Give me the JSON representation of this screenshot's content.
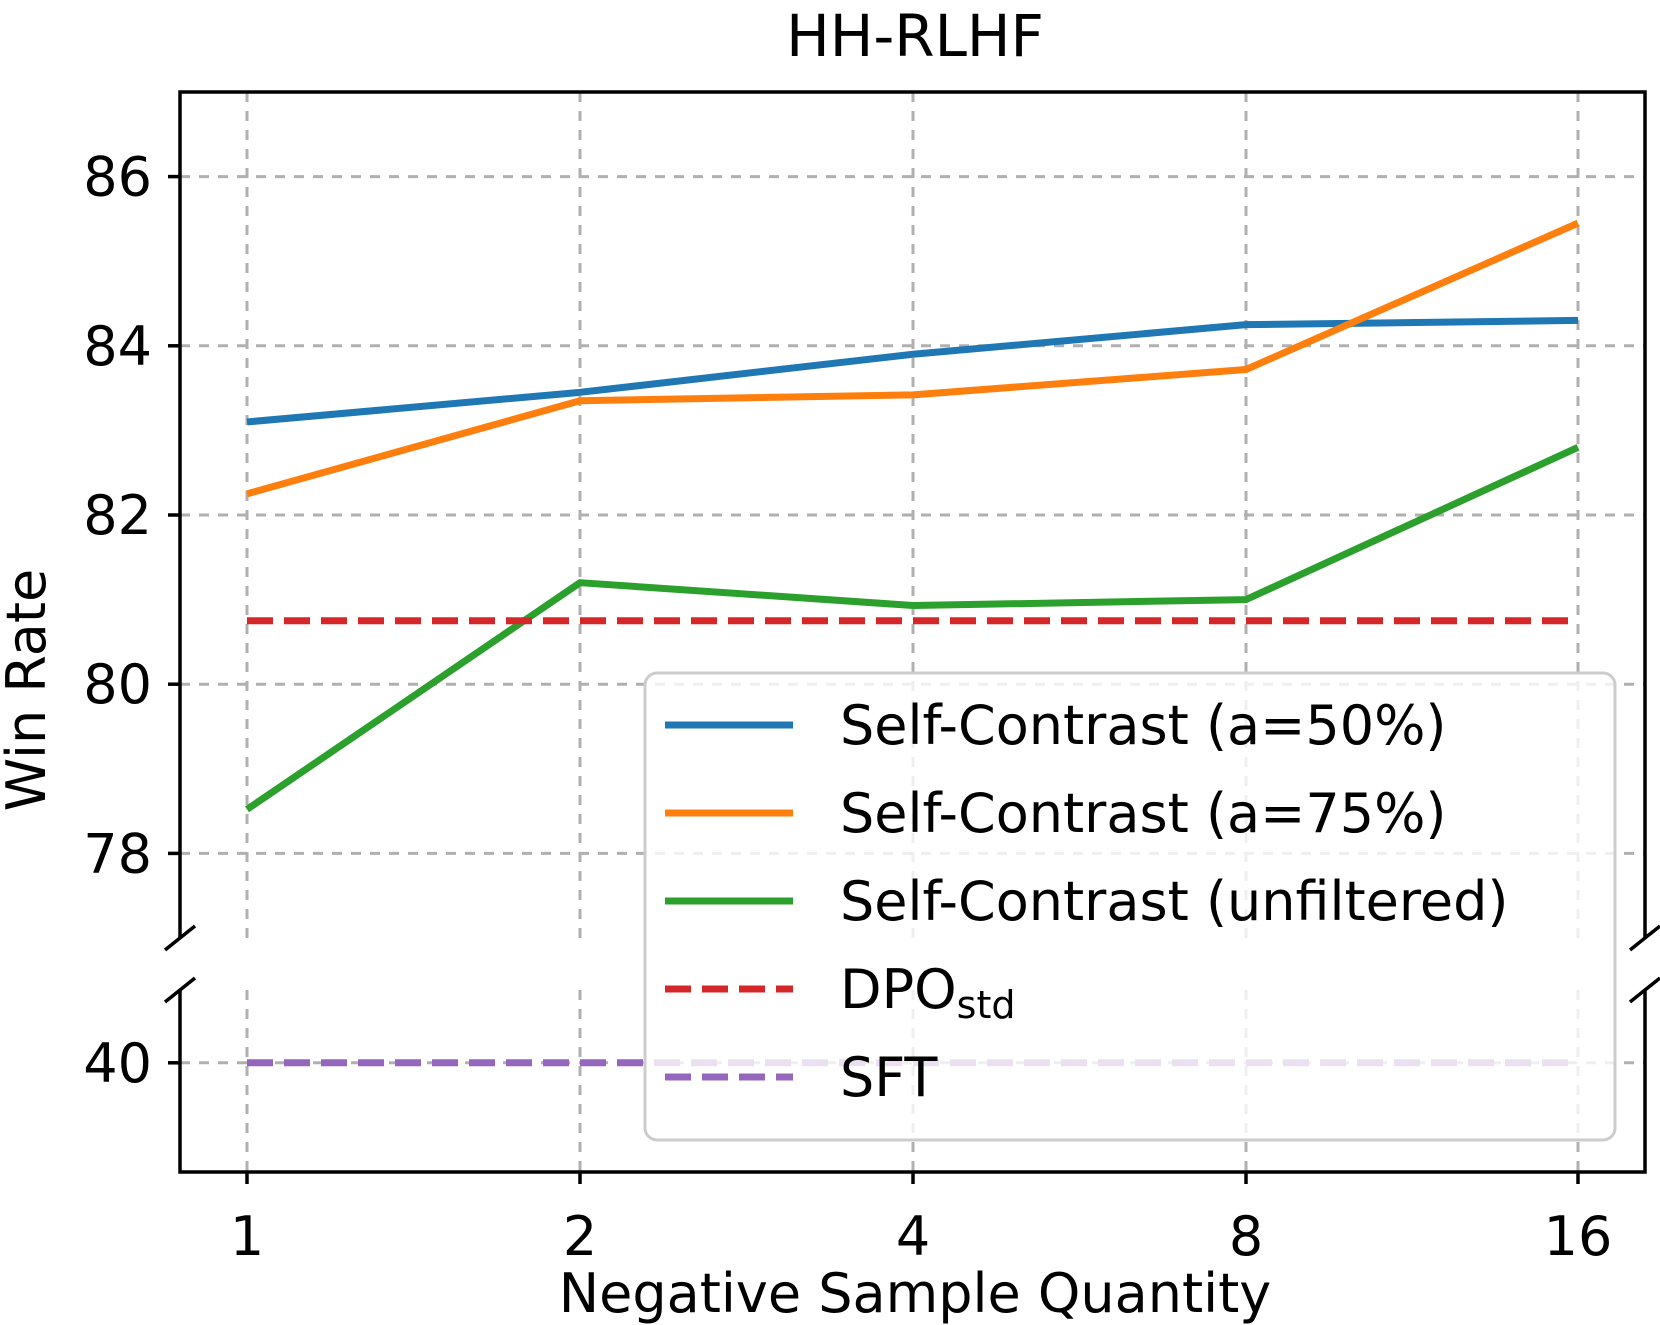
{
  "chart_data": {
    "type": "line",
    "title": "HH-RLHF",
    "xlabel": "Negative Sample Quantity",
    "ylabel": "Win Rate",
    "categories": [
      "1",
      "2",
      "4",
      "8",
      "16"
    ],
    "y_axis_break": true,
    "ylim_upper": [
      77,
      87
    ],
    "ylim_lower": [
      37,
      42
    ],
    "yticks_upper": [
      78,
      80,
      82,
      84,
      86
    ],
    "yticks_lower": [
      40
    ],
    "grid": true,
    "grid_style": "dashed",
    "legend_placement": "lower-right",
    "series": [
      {
        "name": "Self-Contrast (a=50%)",
        "color": "#1f77b4",
        "style": "solid",
        "values": [
          83.1,
          83.45,
          83.9,
          84.25,
          84.3
        ]
      },
      {
        "name": "Self-Contrast (a=75%)",
        "color": "#ff7f0e",
        "style": "solid",
        "values": [
          82.25,
          83.35,
          83.42,
          83.72,
          85.45
        ]
      },
      {
        "name": "Self-Contrast (unfiltered)",
        "color": "#2ca02c",
        "style": "solid",
        "values": [
          78.52,
          81.2,
          80.93,
          81.0,
          82.8
        ]
      },
      {
        "name": "DPO",
        "name_subscript": "std",
        "color": "#d62728",
        "style": "dashed",
        "values": [
          80.75,
          80.75,
          80.75,
          80.75,
          80.75
        ]
      },
      {
        "name": "SFT",
        "color": "#9467bd",
        "style": "dashed",
        "values": [
          40.0,
          40.0,
          40.0,
          40.0,
          40.0
        ]
      }
    ]
  }
}
